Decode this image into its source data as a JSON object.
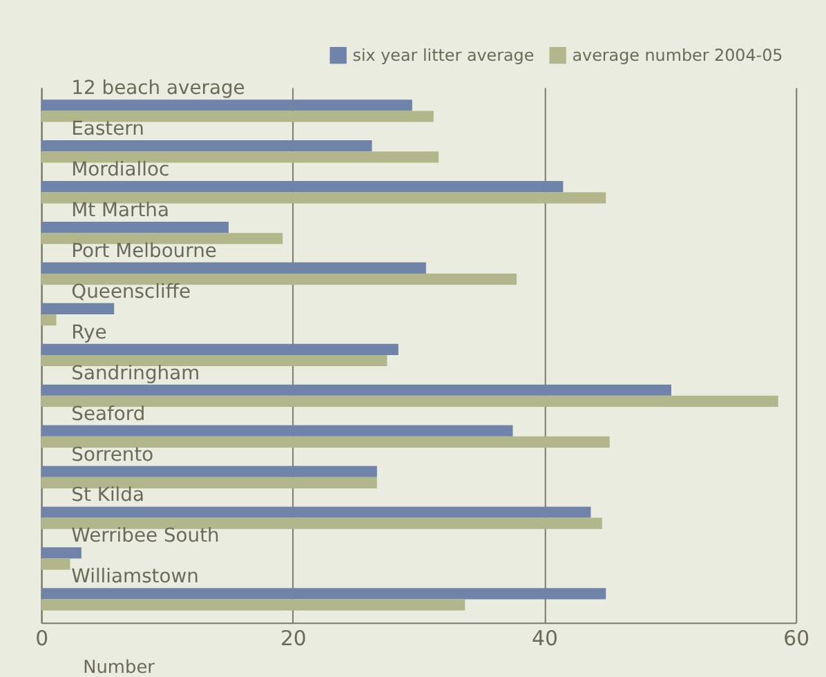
{
  "chart_data": {
    "type": "bar",
    "orientation": "horizontal",
    "xlabel": "Number",
    "categories": [
      "12 beach average",
      "Eastern",
      "Mordialloc",
      "Mt Martha",
      "Port Melbourne",
      "Queenscliffe",
      "Rye",
      "Sandringham",
      "Seaford",
      "Sorrento",
      "St Kilda",
      "Werribee South",
      "Williamstown"
    ],
    "series": [
      {
        "name": "six year litter average",
        "color": "#7083a9",
        "values": [
          29.5,
          26.3,
          41.5,
          14.9,
          30.6,
          5.8,
          28.4,
          50.1,
          37.5,
          26.7,
          43.7,
          3.2,
          44.9
        ]
      },
      {
        "name": "average number 2004-05",
        "color": "#b1b78a",
        "values": [
          31.2,
          31.6,
          44.9,
          19.2,
          37.8,
          1.2,
          27.5,
          58.6,
          45.2,
          26.7,
          44.6,
          2.3,
          33.7
        ]
      }
    ],
    "xlim": [
      0,
      60
    ],
    "xticks": [
      0,
      20,
      40,
      60
    ],
    "grid": "x",
    "legend": "top right"
  }
}
